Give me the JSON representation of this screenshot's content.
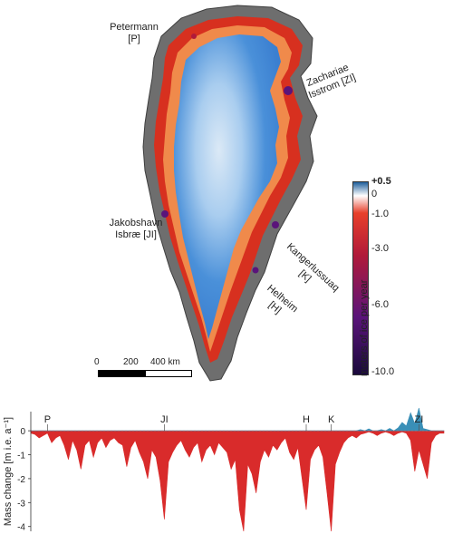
{
  "map": {
    "labels": {
      "petermann": [
        "Petermann",
        "[P]"
      ],
      "zachariae": [
        "Zachariae",
        "Isstrom [ZI]"
      ],
      "jakobshavn": [
        "Jakobshavn",
        "Isbræ [JI]"
      ],
      "kangerlussuaq": [
        "Kangerlussuaq",
        "[K]"
      ],
      "helheim": [
        "Helheim",
        "[H]"
      ]
    },
    "colorbar": {
      "title": "meters of ice per year",
      "ticks": [
        "+0.5",
        "0",
        "-1.0",
        "-3.0",
        "-6.0",
        "-10.0"
      ],
      "colors": {
        "positive": "#1f5f9c",
        "zero": "#ffffff",
        "low_loss": "#e8402a",
        "mid_loss": "#b01a3a",
        "high_loss": "#5a147a",
        "max_loss": "#1a0a3c"
      }
    },
    "scale_bar": {
      "ticks": [
        "0",
        "200",
        "400 km"
      ]
    },
    "colors": {
      "rock": "#6e6e6e",
      "interior_ice": "#4a90d9",
      "summit_ice": "#dbe9f6",
      "margin_ice": "#f08a4b",
      "edge_loss": "#d7301f"
    }
  },
  "chart_data": {
    "type": "area",
    "title": "",
    "xlabel": "",
    "ylabel": "Mass change [m i.e. a⁻¹]",
    "ylim": [
      -4.2,
      0.8
    ],
    "y_ticks": [
      "0",
      "-1",
      "-2",
      "-3",
      "-4"
    ],
    "annotations": [
      "P",
      "JI",
      "H",
      "K",
      "ZI"
    ],
    "x": [
      0,
      1,
      2,
      3,
      4,
      5,
      6,
      7,
      8,
      9,
      10,
      11,
      12,
      13,
      14,
      15,
      16,
      17,
      18,
      19,
      20,
      21,
      22,
      23,
      24,
      25,
      26,
      27,
      28,
      29,
      30,
      31,
      32,
      33,
      34,
      35,
      36,
      37,
      38,
      39,
      40,
      41,
      42,
      43,
      44,
      45,
      46,
      47,
      48,
      49,
      50,
      51,
      52,
      53,
      54,
      55,
      56,
      57,
      58,
      59,
      60,
      61,
      62,
      63,
      64,
      65,
      66,
      67,
      68,
      69,
      70,
      71,
      72,
      73,
      74,
      75,
      76,
      77,
      78,
      79,
      80,
      81,
      82,
      83,
      84,
      85,
      86,
      87,
      88,
      89,
      90,
      91,
      92,
      93,
      94,
      95,
      96,
      97,
      98,
      99
    ],
    "annotation_x": [
      4,
      32,
      66,
      72,
      93
    ],
    "series": [
      {
        "color": "#d92b2b",
        "values": [
          -0.1,
          -0.15,
          -0.3,
          -0.2,
          -0.1,
          -0.5,
          -0.3,
          -0.2,
          -0.6,
          -1.2,
          -0.4,
          -0.8,
          -1.6,
          -0.6,
          -0.4,
          -1.1,
          -0.5,
          -0.3,
          -0.7,
          -0.4,
          -0.3,
          -0.5,
          -0.6,
          -1.5,
          -0.7,
          -0.4,
          -0.9,
          -1.3,
          -2.0,
          -0.8,
          -1.1,
          -2.1,
          -3.7,
          -1.3,
          -0.9,
          -0.6,
          -0.4,
          -0.8,
          -1.1,
          -0.7,
          -0.5,
          -1.3,
          -0.8,
          -0.6,
          -1.0,
          -0.5,
          -0.7,
          -0.9,
          -1.6,
          -1.2,
          -3.3,
          -4.2,
          -1.4,
          -1.8,
          -2.6,
          -1.3,
          -0.8,
          -1.1,
          -0.6,
          -0.8,
          -0.5,
          -0.3,
          -0.9,
          -1.2,
          -0.7,
          -2.0,
          -3.3,
          -1.2,
          -0.8,
          -0.6,
          -1.1,
          -2.6,
          -4.2,
          -1.4,
          -0.9,
          -0.5,
          -0.3,
          -0.2,
          -0.3,
          -0.15,
          -0.1,
          -0.05,
          -0.1,
          -0.2,
          -0.1,
          -0.05,
          -0.1,
          -0.2,
          -0.1,
          -0.05,
          -0.1,
          -0.4,
          -1.7,
          -0.8,
          -1.4,
          -2.0,
          -0.5,
          -0.2,
          -0.1,
          -0.1
        ]
      },
      {
        "color": "#3a8fb7",
        "values": [
          0,
          0,
          0,
          0,
          0,
          0,
          0,
          0,
          0,
          0,
          0,
          0,
          0,
          0,
          0,
          0,
          0,
          0,
          0,
          0,
          0,
          0,
          0,
          0,
          0,
          0,
          0,
          0,
          0,
          0,
          0,
          0,
          0,
          0,
          0,
          0,
          0,
          0,
          0,
          0,
          0,
          0,
          0,
          0,
          0,
          0,
          0,
          0,
          0,
          0,
          0,
          0,
          0,
          0,
          0,
          0,
          0,
          0,
          0,
          0,
          0,
          0,
          0,
          0,
          0,
          0,
          0,
          0,
          0,
          0,
          0,
          0,
          0,
          0,
          0,
          0,
          0,
          0,
          0,
          0.05,
          0,
          0.08,
          0,
          0,
          0.05,
          0,
          0.1,
          0,
          0.12,
          0.35,
          0.2,
          0.75,
          0.3,
          0.95,
          0.1,
          0.05,
          0,
          0,
          0,
          0
        ]
      }
    ]
  }
}
